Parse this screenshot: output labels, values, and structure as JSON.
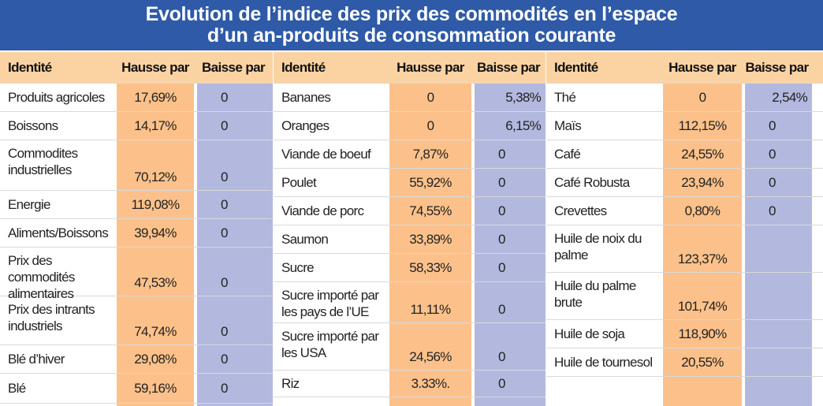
{
  "title": {
    "line1": "Evolution de l’indice des prix des commodités en l’espace",
    "line2": "d’un an-produits de consommation courante"
  },
  "headers": {
    "identite": "Identité",
    "hausse": "Hausse par",
    "baisse": "Baisse par"
  },
  "colors": {
    "title_bg": "#2e5aa8",
    "header_bg": "#fbd3a3",
    "hausse_bg": "#fcc18a",
    "baisse_bg": "#b3b8df"
  },
  "panels": [
    {
      "rows": [
        {
          "name": "Produits agricoles",
          "hausse": "17,69%",
          "baisse": "0"
        },
        {
          "name": "Boissons",
          "hausse": "14,17%",
          "baisse": "0"
        },
        {
          "name": "Commodites industrielles",
          "hausse": "70,12%",
          "baisse": "0"
        },
        {
          "name": "Energie",
          "hausse": "119,08%",
          "baisse": "0"
        },
        {
          "name": "Aliments/Boissons",
          "hausse": "39,94%",
          "baisse": "0"
        },
        {
          "name": "Prix des commodités alimentaires",
          "hausse": "47,53%",
          "baisse": "0"
        },
        {
          "name": "Prix des intrants industriels",
          "hausse": "74,74%",
          "baisse": "0"
        },
        {
          "name": "Blé d’hiver",
          "hausse": "29,08%",
          "baisse": "0"
        },
        {
          "name": "Blé",
          "hausse": "59,16%",
          "baisse": "0"
        }
      ]
    },
    {
      "rows": [
        {
          "name": "Bananes",
          "hausse": "0",
          "baisse": "5,38%"
        },
        {
          "name": "Oranges",
          "hausse": "0",
          "baisse": "6,15%"
        },
        {
          "name": "Viande de boeuf",
          "hausse": "7,87%",
          "baisse": "0"
        },
        {
          "name": "Poulet",
          "hausse": "55,92%",
          "baisse": "0"
        },
        {
          "name": "Viande de porc",
          "hausse": "74,55%",
          "baisse": "0"
        },
        {
          "name": "Saumon",
          "hausse": "33,89%",
          "baisse": "0"
        },
        {
          "name": "Sucre",
          "hausse": "58,33%",
          "baisse": "0"
        },
        {
          "name": "Sucre importé par les pays de l’UE",
          "hausse": "11,11%",
          "baisse": "0"
        },
        {
          "name": "Sucre importé par les USA",
          "hausse": "24,56%",
          "baisse": "0"
        },
        {
          "name": "Riz",
          "hausse": "3.33%.",
          "baisse": "0"
        }
      ]
    },
    {
      "rows": [
        {
          "name": "Thé",
          "hausse": "0",
          "baisse": "2,54%"
        },
        {
          "name": "Maïs",
          "hausse": "112,15%",
          "baisse": "0"
        },
        {
          "name": "Café",
          "hausse": "24,55%",
          "baisse": "0"
        },
        {
          "name": "Café Robusta",
          "hausse": "23,94%",
          "baisse": "0"
        },
        {
          "name": "Crevettes",
          "hausse": "0,80%",
          "baisse": "0"
        },
        {
          "name": "Huile de noix du palme",
          "hausse": "123,37%",
          "baisse": ""
        },
        {
          "name": "Huile du palme brute",
          "hausse": "101,74%",
          "baisse": ""
        },
        {
          "name": "Huile de soja",
          "hausse": "118,90%",
          "baisse": ""
        },
        {
          "name": "Huile de tournesol",
          "hausse": "20,55%",
          "baisse": ""
        }
      ]
    }
  ]
}
